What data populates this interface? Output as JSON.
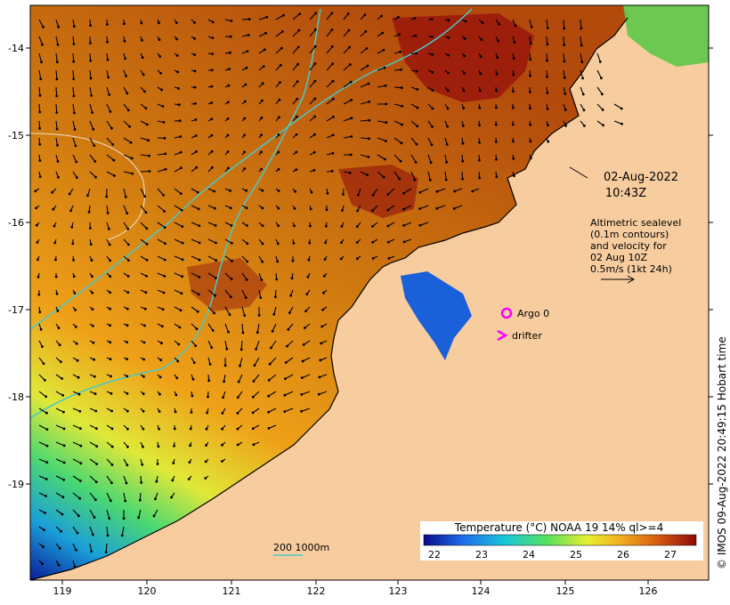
{
  "map": {
    "lon_ticks": [
      "119",
      "120",
      "121",
      "122",
      "123",
      "124",
      "125",
      "126"
    ],
    "lat_ticks": [
      "-14",
      "-15",
      "-16",
      "-17",
      "-18",
      "-19"
    ],
    "colors": {
      "land": "#f7cda0",
      "ocean_warm": "#c9780d",
      "ocean_hot": "#9b1a0c",
      "frame": "#000000",
      "contour": "#4bc8c8",
      "argo": "#ff00ff"
    }
  },
  "annotations": {
    "date_line1": "02-Aug-2022",
    "date_line2": "10:43Z",
    "alti_line1": "Altimetric sealevel",
    "alti_line2": "(0.1m contours)",
    "alti_line3": "and velocity for",
    "alti_line4": "02 Aug 10Z",
    "alti_line5": "0.5m/s (1kt 24h)",
    "argo_label": "Argo 0",
    "drifter_label": "drifter",
    "depth_label": "200  1000m"
  },
  "colorbar": {
    "title": "Temperature (°C) NOAA 19 14% ql>=4",
    "ticks": [
      "22",
      "23",
      "24",
      "25",
      "26",
      "27"
    ],
    "stops": [
      "#0a0a8a",
      "#1c6ce8",
      "#19c8d8",
      "#55e060",
      "#e8f030",
      "#f0b020",
      "#d85a10",
      "#8a0a0a"
    ]
  },
  "credit": "© IMOS 09-Aug-2022 20:49:15 Hobart time"
}
